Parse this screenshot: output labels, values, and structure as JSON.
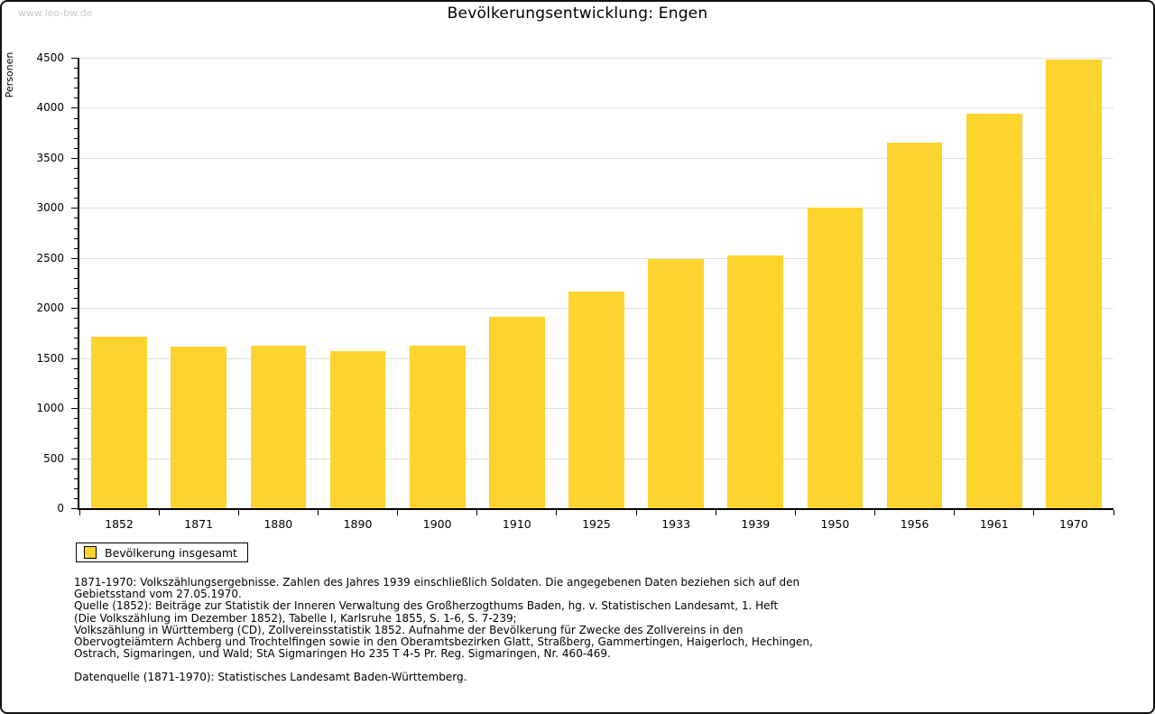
{
  "page": {
    "watermark": "www.leo-bw.de",
    "title": "Bevölkerungsentwicklung: Engen"
  },
  "chart_data": {
    "type": "bar",
    "title": "Bevölkerungsentwicklung: Engen",
    "xlabel": "",
    "ylabel": "Personen",
    "categories": [
      "1852",
      "1871",
      "1880",
      "1890",
      "1900",
      "1910",
      "1925",
      "1933",
      "1939",
      "1950",
      "1956",
      "1961",
      "1970"
    ],
    "values": [
      1710,
      1610,
      1625,
      1570,
      1620,
      1915,
      2160,
      2490,
      2525,
      3000,
      3650,
      3940,
      4480
    ],
    "ylim": [
      0,
      4500
    ],
    "ytick_step": 500,
    "minor_tick_step": 100,
    "grid": true,
    "bar_color": "#fdd32d",
    "grid_color": "#e0e0e0",
    "axis_color": "#000000",
    "legend": {
      "position": "bottom-left",
      "entries": [
        "Bevölkerung insgesamt"
      ]
    }
  },
  "footnotes": {
    "lines": [
      "1871-1970: Volkszählungsergebnisse. Zahlen des Jahres 1939 einschließlich Soldaten. Die angegebenen Daten beziehen sich auf den",
      "Gebietsstand vom 27.05.1970.",
      "Quelle (1852): Beiträge zur Statistik der Inneren Verwaltung des Großherzogthums Baden, hg. v. Statistischen Landesamt, 1. Heft",
      "(Die Volkszählung im Dezember 1852), Tabelle I, Karlsruhe 1855, S. 1-6, S. 7-239;",
      "Volkszählung in Württemberg (CD), Zollvereinsstatistik 1852. Aufnahme der Bevölkerung für Zwecke des Zollvereins in den",
      "Obervogteiämtern Achberg und Trochtelfingen sowie in den Oberamtsbezirken Glatt, Straßberg, Gammertingen, Haigerloch, Hechingen,",
      "Ostrach, Sigmaringen, und Wald; StA Sigmaringen Ho 235 T 4-5 Pr. Reg. Sigmaringen, Nr. 460-469."
    ],
    "source": "Datenquelle (1871-1970): Statistisches Landesamt Baden-Württemberg."
  }
}
